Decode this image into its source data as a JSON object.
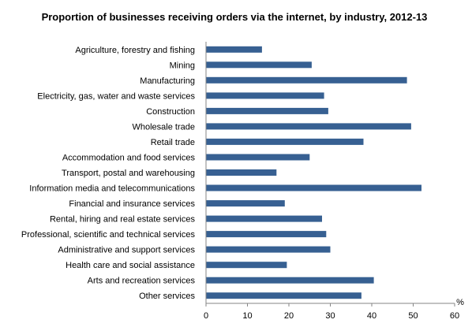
{
  "chart_data": {
    "type": "bar",
    "orientation": "horizontal",
    "title": "Proportion of businesses receiving orders via the internet, by industry, 2012-13",
    "xlabel": "%",
    "ylabel": "",
    "xlim": [
      0,
      60
    ],
    "xticks": [
      0,
      10,
      20,
      30,
      40,
      50,
      60
    ],
    "grid": false,
    "bar_color": "#376092",
    "categories": [
      "Agriculture, forestry and fishing",
      "Mining",
      "Manufacturing",
      "Electricity, gas, water and waste services",
      "Construction",
      "Wholesale trade",
      "Retail trade",
      "Accommodation and food services",
      "Transport, postal and warehousing",
      "Information media and telecommunications",
      "Financial and insurance services",
      "Rental, hiring and real estate services",
      "Professional, scientific and technical services",
      "Administrative and support services",
      "Health care and social assistance",
      "Arts and recreation services",
      "Other services"
    ],
    "values": [
      13.5,
      25.5,
      48.5,
      28.5,
      29.5,
      49.5,
      38,
      25,
      17,
      52,
      19,
      28,
      29,
      30,
      19.5,
      40.5,
      37.5
    ]
  }
}
